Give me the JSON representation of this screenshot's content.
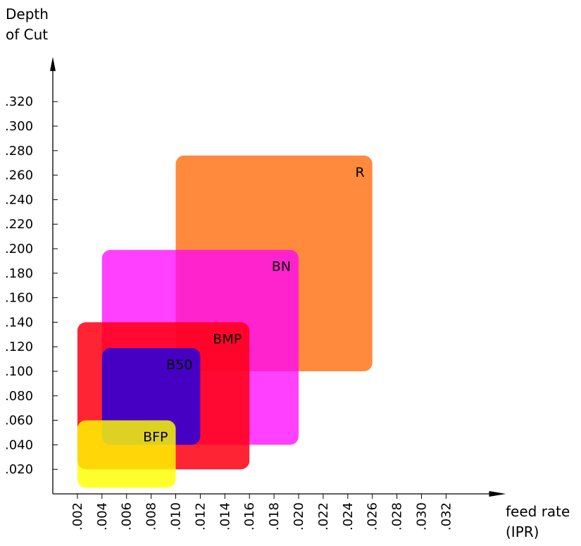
{
  "chart_data": {
    "type": "rectangle-region",
    "ylabel_lines": [
      "Depth",
      "of Cut"
    ],
    "xlabel_lines": [
      "feed rate",
      "(IPR)"
    ],
    "x_ticks": [
      ".002",
      ".004",
      ".006",
      ".008",
      ".010",
      ".012",
      ".014",
      ".016",
      ".018",
      ".020",
      ".022",
      ".024",
      ".026",
      ".028",
      ".030",
      ".032"
    ],
    "x_tick_values": [
      0.002,
      0.004,
      0.006,
      0.008,
      0.01,
      0.012,
      0.014,
      0.016,
      0.018,
      0.02,
      0.022,
      0.024,
      0.026,
      0.028,
      0.03,
      0.032
    ],
    "y_ticks": [
      ".020",
      ".040",
      ".060",
      ".080",
      ".100",
      ".120",
      ".140",
      ".160",
      ".180",
      ".200",
      ".220",
      ".240",
      ".260",
      ".280",
      ".300",
      ".320"
    ],
    "y_tick_values": [
      0.02,
      0.04,
      0.06,
      0.08,
      0.1,
      0.12,
      0.14,
      0.16,
      0.18,
      0.2,
      0.22,
      0.24,
      0.26,
      0.28,
      0.3,
      0.32
    ],
    "xlim": [
      0.0,
      0.0355
    ],
    "ylim": [
      0.0,
      0.345
    ],
    "regions": [
      {
        "name": "R",
        "x_range": [
          0.01,
          0.026
        ],
        "y_range": [
          0.1,
          0.276
        ],
        "color": "#ff8a3d",
        "opacity": 1.0
      },
      {
        "name": "BN",
        "x_range": [
          0.004,
          0.02
        ],
        "y_range": [
          0.04,
          0.199
        ],
        "color": "#ff00ff",
        "opacity": 0.75
      },
      {
        "name": "BMP",
        "x_range": [
          0.002,
          0.016
        ],
        "y_range": [
          0.02,
          0.14
        ],
        "color": "#ff0012",
        "opacity": 0.86
      },
      {
        "name": "B50",
        "x_range": [
          0.004,
          0.012
        ],
        "y_range": [
          0.04,
          0.119
        ],
        "color": "#3a00cc",
        "opacity": 0.94
      },
      {
        "name": "BFP",
        "x_range": [
          0.002,
          0.01
        ],
        "y_range": [
          0.005,
          0.06
        ],
        "color": "#ffff00",
        "opacity": 0.82
      }
    ]
  }
}
